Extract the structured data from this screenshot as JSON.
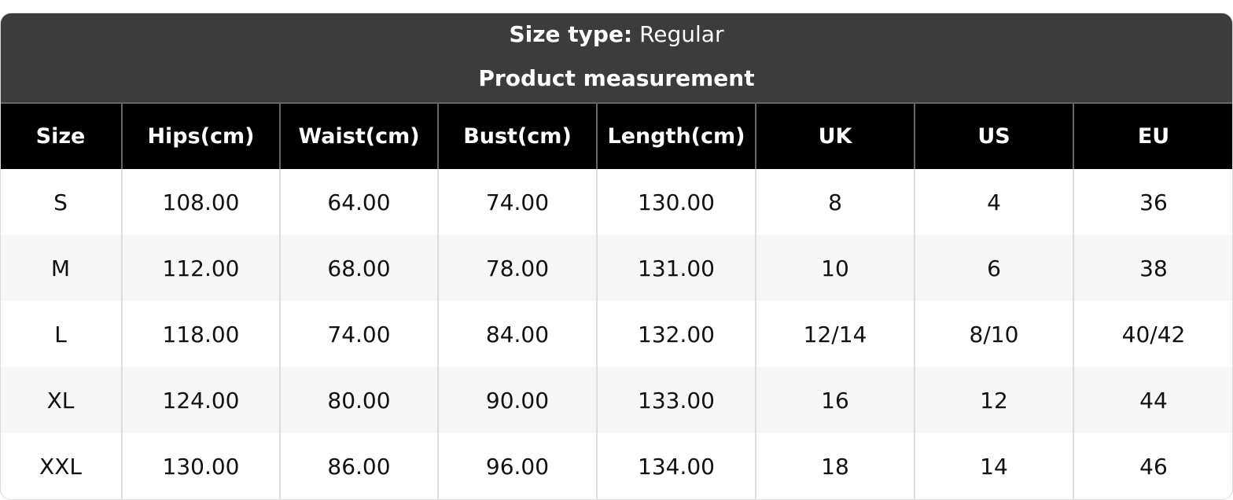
{
  "header": {
    "size_type_label": "Size type:",
    "size_type_value": "Regular",
    "subtitle": "Product measurement"
  },
  "columns": [
    "Size",
    "Hips(cm)",
    "Waist(cm)",
    "Bust(cm)",
    "Length(cm)",
    "UK",
    "US",
    "EU"
  ],
  "rows": [
    [
      "S",
      "108.00",
      "64.00",
      "74.00",
      "130.00",
      "8",
      "4",
      "36"
    ],
    [
      "M",
      "112.00",
      "68.00",
      "78.00",
      "131.00",
      "10",
      "6",
      "38"
    ],
    [
      "L",
      "118.00",
      "74.00",
      "84.00",
      "132.00",
      "12/14",
      "8/10",
      "40/42"
    ],
    [
      "XL",
      "124.00",
      "80.00",
      "90.00",
      "133.00",
      "16",
      "12",
      "44"
    ],
    [
      "XXL",
      "130.00",
      "86.00",
      "96.00",
      "134.00",
      "18",
      "14",
      "46"
    ]
  ]
}
